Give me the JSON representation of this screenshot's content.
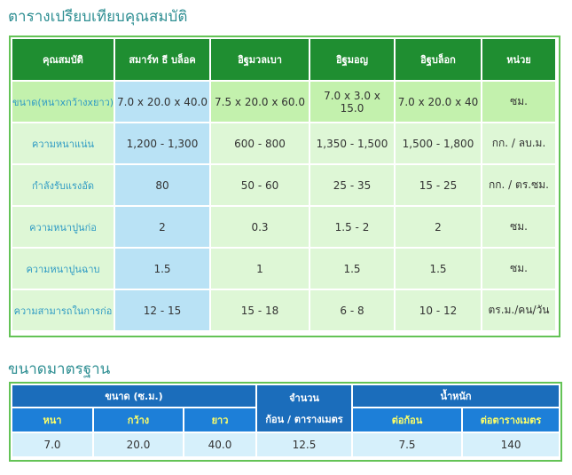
{
  "compare": {
    "title": "ตารางเปรียบเทียบคุณสมบัติ",
    "headers": [
      "คุณสมบัติ",
      "สมาร์ท ธี บล็อค",
      "อิฐมวลเบา",
      "อิฐมอญ",
      "อิฐบล็อก",
      "หน่วย"
    ],
    "rows": [
      {
        "label": "ขนาด(หนาxกว้างxยาว)",
        "values": [
          "7.0 x 20.0 x 40.0",
          "7.5 x 20.0 x 60.0",
          "7.0 x 3.0 x 15.0",
          "7.0 x 20.0 x 40"
        ],
        "unit": "ซม."
      },
      {
        "label": "ความหนาแน่น",
        "values": [
          "1,200 - 1,300",
          "600 - 800",
          "1,350 - 1,500",
          "1,500 - 1,800"
        ],
        "unit": "กก. / ลบ.ม."
      },
      {
        "label": "กำลังรับแรงอัด",
        "values": [
          "80",
          "50 - 60",
          "25 - 35",
          "15 - 25"
        ],
        "unit": "กก. / ตร.ซม."
      },
      {
        "label": "ความหนาปูนก่อ",
        "values": [
          "2",
          "0.3",
          "1.5 - 2",
          "2"
        ],
        "unit": "ซม."
      },
      {
        "label": "ความหนาปูนฉาบ",
        "values": [
          "1.5",
          "1",
          "1.5",
          "1.5"
        ],
        "unit": "ซม."
      },
      {
        "label": "ความสามารถในการก่อ",
        "values": [
          "12 - 15",
          "15 - 18",
          "6 - 8",
          "10 - 12"
        ],
        "unit": "ตร.ม./คน/วัน"
      }
    ]
  },
  "standard": {
    "title": "ขนาดมาตรฐาน",
    "size_header": "ขนาด (ซ.ม.)",
    "count_header_line1": "จำนวน",
    "count_header_line2": "ก้อน / ตารางเมตร",
    "weight_header": "น้ำหนัก",
    "sub_headers": [
      "หนา",
      "กว้าง",
      "ยาว",
      "ต่อก้อน",
      "ต่อตารางเมตร"
    ],
    "values": {
      "thick": "7.0",
      "width": "20.0",
      "length": "40.0",
      "count": "12.5",
      "per_block": "7.5",
      "per_sqm": "140"
    }
  }
}
